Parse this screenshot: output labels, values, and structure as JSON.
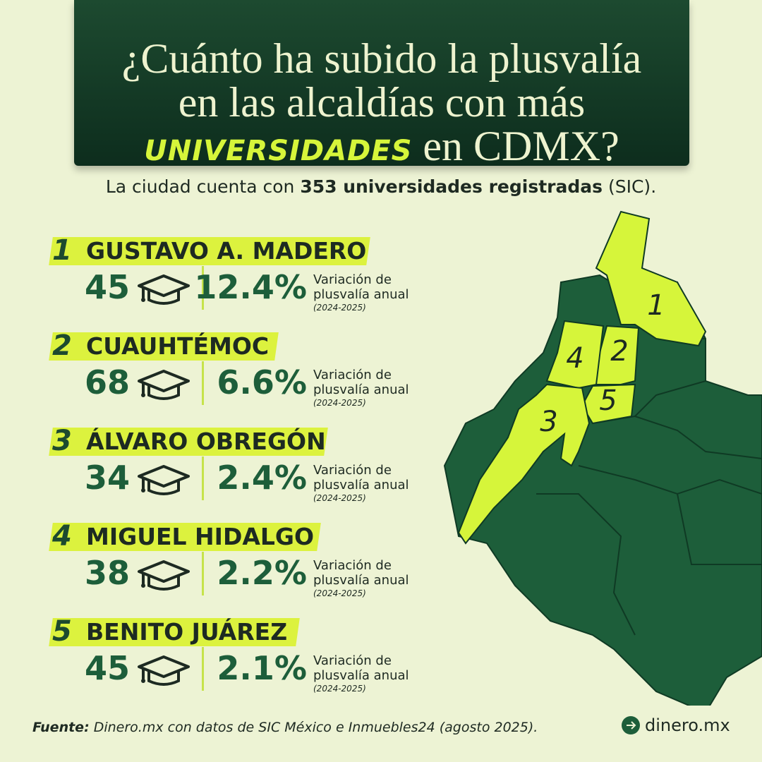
{
  "header": {
    "title_line1": "¿Cuánto ha subido la plusvalía",
    "title_line2": "en las alcaldías con más",
    "title_highlight": "UNIVERSIDADES",
    "title_line3_end": "en CDMX?"
  },
  "subtitle": {
    "lead": "La ciudad cuenta con",
    "bold": "353 universidades registradas",
    "tail": "(SIC)."
  },
  "items": [
    {
      "rank": "1",
      "name": "GUSTAVO A. MADERO",
      "universities": "45",
      "variation": "12.4%",
      "metric_label": "Variación de plusvalía anual",
      "period": "(2024-2025)"
    },
    {
      "rank": "2",
      "name": "CUAUHTÉMOC",
      "universities": "68",
      "variation": "6.6%",
      "metric_label": "Variación de plusvalía anual",
      "period": "(2024-2025)"
    },
    {
      "rank": "3",
      "name": "ÁLVARO OBREGÓN",
      "universities": "34",
      "variation": "2.4%",
      "metric_label": "Variación de plusvalía anual",
      "period": "(2024-2025)"
    },
    {
      "rank": "4",
      "name": "MIGUEL HIDALGO",
      "universities": "38",
      "variation": "2.2%",
      "metric_label": "Variación de plusvalía anual",
      "period": "(2024-2025)"
    },
    {
      "rank": "5",
      "name": "BENITO JUÁREZ",
      "universities": "45",
      "variation": "2.1%",
      "metric_label": "Variación de plusvalía anual",
      "period": "(2024-2025)"
    }
  ],
  "footer": {
    "source_label": "Fuente:",
    "source_text": "Dinero.mx con datos de SIC México e Inmuebles24 (agosto 2025).",
    "brand": "dinero.mx"
  }
}
